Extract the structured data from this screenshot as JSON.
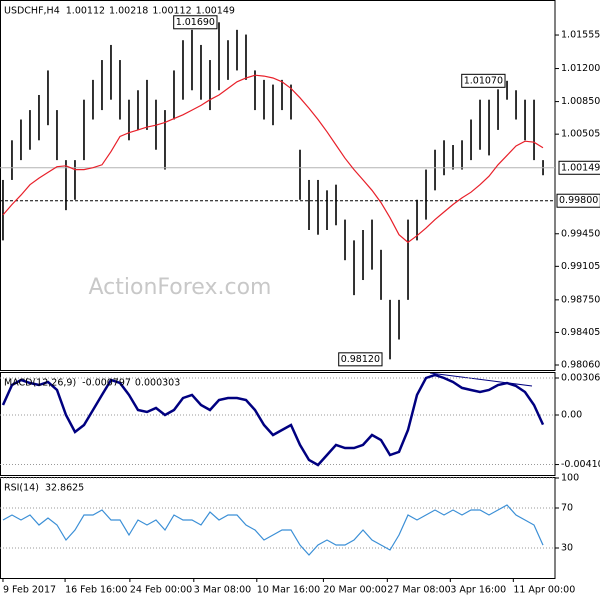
{
  "chart_data": [
    {
      "type": "hilo",
      "title": "USDCHF,H4",
      "header_values": [
        1.00112,
        1.00218,
        1.00112,
        1.00149
      ],
      "color": "#000000",
      "high": [
        1.0002,
        1.0044,
        1.0066,
        1.0076,
        1.0092,
        1.0118,
        1.0076,
        1.0023,
        1.0023,
        1.0087,
        1.0108,
        1.0129,
        1.0145,
        1.0129,
        1.0087,
        1.0097,
        1.0108,
        1.0087,
        1.0076,
        1.0118,
        1.015,
        1.0161,
        1.0145,
        1.0129,
        1.0169,
        1.015,
        1.0161,
        1.0156,
        1.0118,
        1.0108,
        1.0103,
        1.0108,
        1.0103,
        1.0034,
        1.0002,
        1.0002,
        0.9991,
        0.9997,
        0.996,
        0.9938,
        0.9949,
        0.996,
        0.9928,
        0.9875,
        0.9875,
        0.996,
        0.9981,
        1.0013,
        1.0034,
        1.0044,
        1.0039,
        1.0044,
        1.0066,
        1.0087,
        1.0087,
        1.0098,
        1.0107,
        1.0097,
        1.0087,
        1.0087,
        1.0023
      ],
      "low": [
        0.9938,
        1.0002,
        1.0023,
        1.0034,
        1.0044,
        1.006,
        1.0023,
        0.997,
        0.9981,
        1.0023,
        1.0066,
        1.0076,
        1.0087,
        1.0066,
        1.0044,
        1.0055,
        1.0055,
        1.0034,
        1.0013,
        1.0066,
        1.0087,
        1.0097,
        1.0087,
        1.0076,
        1.0097,
        1.0108,
        1.0118,
        1.0108,
        1.0076,
        1.0066,
        1.006,
        1.0076,
        1.0066,
        0.9981,
        0.9949,
        0.9944,
        0.9949,
        0.9954,
        0.9917,
        0.988,
        0.9896,
        0.9907,
        0.9875,
        0.9812,
        0.9833,
        0.9875,
        0.9938,
        0.996,
        0.9991,
        1.0007,
        1.0013,
        1.0013,
        1.0023,
        1.0034,
        1.0028,
        1.0055,
        1.0087,
        1.0066,
        1.0044,
        1.0023,
        1.0007
      ],
      "series": [
        {
          "color": "#e8202a",
          "values": [
            0.9965,
            0.9976,
            0.9986,
            0.9997,
            1.0004,
            1.001,
            1.0016,
            1.0017,
            1.0013,
            1.0013,
            1.0015,
            1.0018,
            1.0032,
            1.0048,
            1.0052,
            1.0055,
            1.0058,
            1.006,
            1.0063,
            1.0067,
            1.0071,
            1.0076,
            1.0081,
            1.0087,
            1.0092,
            1.0099,
            1.0106,
            1.011,
            1.0113,
            1.0112,
            1.011,
            1.0106,
            1.0099,
            1.0089,
            1.0078,
            1.0066,
            1.0053,
            1.0039,
            1.0025,
            1.0013,
            1.0002,
            0.9991,
            0.9978,
            0.9962,
            0.9944,
            0.9936,
            0.9943,
            0.9951,
            0.996,
            0.9968,
            0.9976,
            0.9983,
            0.9989,
            0.9997,
            1.0006,
            1.0018,
            1.0028,
            1.0038,
            1.0043,
            1.0042,
            1.0036
          ]
        }
      ],
      "last": 1.00149,
      "last_color": "#b4b4b4",
      "level": {
        "value": 0.998,
        "label": "0.99800"
      },
      "annotations_high": [
        {
          "value": 1.0169,
          "label": "1.01690"
        },
        {
          "value": 1.0107,
          "label": "1.01070"
        }
      ],
      "annotations_low": [
        {
          "value": 0.9812,
          "label": "0.98120"
        }
      ],
      "watermark": "ActionForex.com",
      "xlim": [
        -0.33,
        61.33
      ],
      "ylim": [
        0.98007,
        1.01926
      ],
      "yticks": [
        1.01555,
        {
          "value": 1.012,
          "label": "1.01200"
        },
        {
          "value": 1.0085,
          "label": "1.00850"
        },
        1.00505,
        {
          "value": 0.9945,
          "label": "0.99450"
        },
        0.99105,
        {
          "value": 0.9875,
          "label": "0.98750"
        },
        0.98405,
        {
          "value": 0.9806,
          "label": "0.98060"
        }
      ]
    },
    {
      "type": "line",
      "title": "MACD(12,26,9)",
      "header_values": [
        -0.000797,
        0.000303
      ],
      "grid": true,
      "series": [
        {
          "color": "#000080",
          "values": [
            0.00083,
            0.00248,
            0.0029,
            0.00265,
            0.00248,
            0.00273,
            0.00207,
            0,
            -0.00141,
            -0.00083,
            0.00041,
            0.00166,
            0.0029,
            0.00265,
            0.00166,
            0.00041,
            0.00025,
            0.00058,
            0,
            0.00041,
            0.00141,
            0.00166,
            0.00083,
            0.00041,
            0.00124,
            0.00141,
            0.00141,
            0.00124,
            0.00041,
            -0.00083,
            -0.00166,
            -0.00124,
            -0.00083,
            -0.00248,
            -0.00373,
            -0.00414,
            -0.00331,
            -0.00248,
            -0.00273,
            -0.00273,
            -0.00248,
            -0.00166,
            -0.00207,
            -0.00331,
            -0.00306,
            -0.00124,
            0.00166,
            0.00306,
            0.00331,
            0.00306,
            0.00273,
            0.00224,
            0.00207,
            0.0019,
            0.00207,
            0.00248,
            0.00265,
            0.0024,
            0.0019,
            0.00083,
            -0.000797
          ]
        }
      ],
      "xlim": [
        -0.33,
        61.33
      ],
      "ylim": [
        -0.00497,
        0.00356
      ],
      "yticks": [
        0.003063,
        {
          "value": 0,
          "label": "0.00"
        },
        -0.004104
      ]
    },
    {
      "type": "line",
      "title": "RSI(14)",
      "header_values": [
        32.8625
      ],
      "grid": true,
      "series": [
        {
          "color": "#3b8fd6",
          "values": [
            58,
            63,
            58,
            63,
            53,
            60,
            53,
            38,
            48,
            63,
            63,
            68,
            58,
            58,
            43,
            58,
            53,
            58,
            48,
            63,
            58,
            58,
            53,
            66,
            58,
            63,
            63,
            53,
            48,
            38,
            43,
            48,
            48,
            33,
            23,
            33,
            38,
            33,
            33,
            38,
            48,
            38,
            33,
            28,
            43,
            63,
            58,
            63,
            68,
            63,
            68,
            63,
            68,
            68,
            63,
            68,
            73,
            63,
            58,
            53,
            32.8625
          ]
        }
      ],
      "xlim": [
        -0.33,
        61.33
      ],
      "ylim": [
        0,
        101
      ],
      "yticks": [
        100,
        70,
        30
      ],
      "xticks": [
        {
          "value": 0,
          "label": "9 Feb 2017"
        },
        {
          "value": 6.9,
          "label": "16 Feb 16:00"
        },
        {
          "value": 14.1,
          "label": "24 Feb 00:00"
        },
        {
          "value": 21.2,
          "label": "3 Mar 08:00"
        },
        {
          "value": 28.2,
          "label": "10 Mar 16:00"
        },
        {
          "value": 35.6,
          "label": "20 Mar 00:00"
        },
        {
          "value": 42.7,
          "label": "27 Mar 08:00"
        },
        {
          "value": 49.7,
          "label": "3 Apr 16:00"
        },
        {
          "value": 56.7,
          "label": "11 Apr 00:00"
        }
      ]
    }
  ]
}
